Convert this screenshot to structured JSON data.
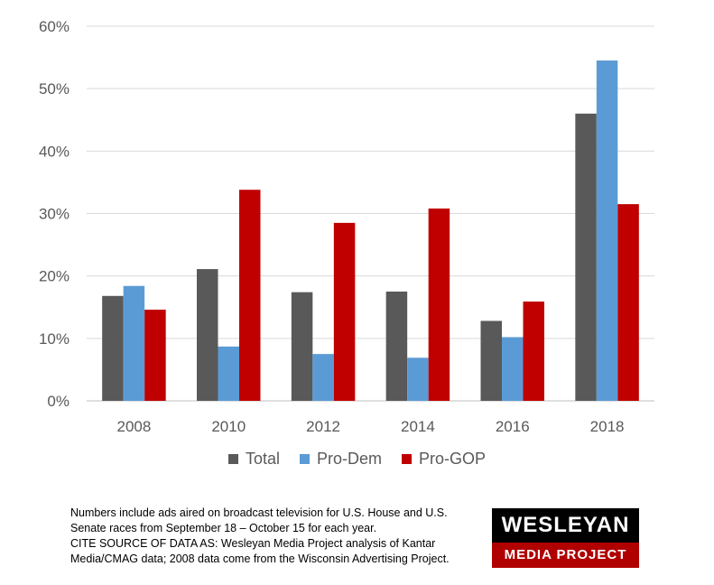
{
  "chart_data": {
    "type": "bar",
    "categories": [
      "2008",
      "2010",
      "2012",
      "2014",
      "2016",
      "2018"
    ],
    "series": [
      {
        "name": "Total",
        "color": "#595959",
        "values": [
          16.8,
          21.1,
          17.4,
          17.5,
          12.8,
          46.0
        ]
      },
      {
        "name": "Pro-Dem",
        "color": "#5b9bd5",
        "values": [
          18.4,
          8.7,
          7.5,
          6.9,
          10.2,
          54.5
        ]
      },
      {
        "name": "Pro-GOP",
        "color": "#c00000",
        "values": [
          14.6,
          33.8,
          28.5,
          30.8,
          15.9,
          31.5
        ]
      }
    ],
    "ylim": [
      0,
      60
    ],
    "yticks": [
      0,
      10,
      20,
      30,
      40,
      50,
      60
    ],
    "ytick_labels": [
      "0%",
      "10%",
      "20%",
      "30%",
      "40%",
      "50%",
      "60%"
    ],
    "grid": true,
    "legend": "bottom",
    "title": "",
    "xlabel": "",
    "ylabel": ""
  },
  "footnote": {
    "lines": [
      "Numbers include ads aired on broadcast television for U.S. House and U.S.",
      "Senate races from September 18 – October 15 for each year.",
      "CITE SOURCE OF DATA AS: Wesleyan Media Project analysis of Kantar",
      "Media/CMAG data; 2008 data come from the Wisconsin  Advertising Project."
    ]
  },
  "logo": {
    "line1": "WESLEYAN",
    "line2": "MEDIA PROJECT",
    "top_color": "#000000",
    "bottom_color": "#b00000"
  }
}
